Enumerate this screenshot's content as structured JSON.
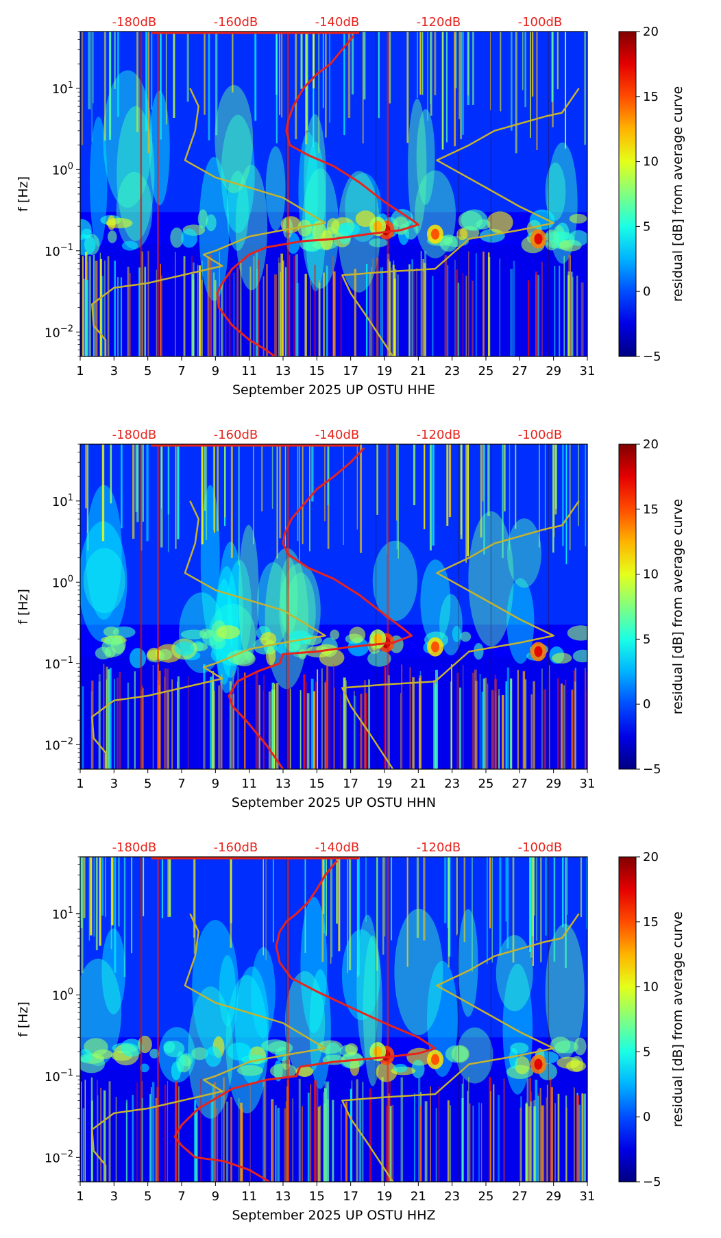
{
  "chart_data": [
    {
      "type": "heatmap",
      "title": "",
      "xlabel": "September 2025 UP OSTU  HHE",
      "ylabel": "f [Hz]",
      "x_ticks": [
        "1",
        "3",
        "5",
        "7",
        "9",
        "11",
        "13",
        "15",
        "17",
        "19",
        "21",
        "23",
        "25",
        "27",
        "29",
        "31"
      ],
      "xlim": [
        1,
        31
      ],
      "ylim": [
        0.005,
        50
      ],
      "y_ticks": [
        {
          "value": 0.01,
          "base": "10",
          "exp": "−2"
        },
        {
          "value": 0.1,
          "base": "10",
          "exp": "−1"
        },
        {
          "value": 1,
          "base": "10",
          "exp": "0"
        },
        {
          "value": 10,
          "base": "10",
          "exp": "1"
        }
      ],
      "db_labels": [
        {
          "day": 4.2,
          "text": "-180dB"
        },
        {
          "day": 10.2,
          "text": "-160dB"
        },
        {
          "day": 16.2,
          "text": "-140dB"
        },
        {
          "day": 22.2,
          "text": "-120dB"
        },
        {
          "day": 28.2,
          "text": "-100dB"
        }
      ],
      "colorbar": {
        "label": "residual [dB] from average curve",
        "min": -5,
        "max": 20,
        "ticks": [
          "20",
          "15",
          "10",
          "5",
          "0",
          "−5"
        ]
      },
      "series": [
        {
          "name": "average PSD (red)",
          "color": "#e8231c",
          "points": [
            [
              17.2,
              45
            ],
            [
              16.5,
              30
            ],
            [
              15.8,
              20
            ],
            [
              15,
              15
            ],
            [
              14.2,
              10
            ],
            [
              13.6,
              6
            ],
            [
              13.3,
              4
            ],
            [
              13.2,
              3
            ],
            [
              13.4,
              2
            ],
            [
              14.5,
              1.5
            ],
            [
              16,
              1.1
            ],
            [
              17.5,
              0.7
            ],
            [
              19,
              0.4
            ],
            [
              20.5,
              0.25
            ],
            [
              21,
              0.21
            ],
            [
              20,
              0.18
            ],
            [
              18,
              0.16
            ],
            [
              16,
              0.14
            ],
            [
              14,
              0.13
            ],
            [
              12,
              0.11
            ],
            [
              11,
              0.09
            ],
            [
              10,
              0.06
            ],
            [
              9.4,
              0.04
            ],
            [
              9.1,
              0.03
            ],
            [
              9.2,
              0.02
            ],
            [
              10,
              0.012
            ],
            [
              11,
              0.008
            ],
            [
              12,
              0.006
            ],
            [
              12.5,
              0.005
            ]
          ]
        },
        {
          "name": "noise model (yellow)",
          "color": "#c7b32e",
          "points": [
            [
              30.5,
              10
            ],
            [
              29.5,
              5
            ],
            [
              28.5,
              4.5
            ],
            [
              25.5,
              3
            ],
            [
              24,
              2
            ],
            [
              22.1,
              1.3
            ],
            [
              25,
              0.6
            ],
            [
              27,
              0.35
            ],
            [
              29,
              0.22
            ],
            [
              27,
              0.18
            ],
            [
              24,
              0.14
            ],
            [
              22,
              0.06
            ],
            [
              19,
              0.055
            ],
            [
              16.5,
              0.05
            ],
            [
              17,
              0.03
            ],
            [
              18,
              0.015
            ],
            [
              19.5,
              0.005
            ]
          ]
        },
        {
          "name": "noise model left (yellow)",
          "color": "#c7b32e",
          "points": [
            [
              7.5,
              10
            ],
            [
              8,
              6
            ],
            [
              7.8,
              3
            ],
            [
              7.2,
              1.3
            ],
            [
              9,
              0.8
            ],
            [
              13,
              0.45
            ],
            [
              15.5,
              0.22
            ],
            [
              13,
              0.18
            ],
            [
              11,
              0.15
            ],
            [
              9,
              0.1
            ],
            [
              8.3,
              0.09
            ],
            [
              9.4,
              0.065
            ],
            [
              5,
              0.04
            ],
            [
              3,
              0.035
            ],
            [
              1.7,
              0.022
            ],
            [
              1.8,
              0.012
            ],
            [
              2.5,
              0.008
            ],
            [
              2.5,
              0.005
            ]
          ]
        }
      ]
    },
    {
      "type": "heatmap",
      "title": "",
      "xlabel": "September 2025 UP OSTU  HHN",
      "ylabel": "f [Hz]",
      "x_ticks": [
        "1",
        "3",
        "5",
        "7",
        "9",
        "11",
        "13",
        "15",
        "17",
        "19",
        "21",
        "23",
        "25",
        "27",
        "29",
        "31"
      ],
      "xlim": [
        1,
        31
      ],
      "ylim": [
        0.005,
        50
      ],
      "y_ticks": [
        {
          "value": 0.01,
          "base": "10",
          "exp": "−2"
        },
        {
          "value": 0.1,
          "base": "10",
          "exp": "−1"
        },
        {
          "value": 1,
          "base": "10",
          "exp": "0"
        },
        {
          "value": 10,
          "base": "10",
          "exp": "1"
        }
      ],
      "db_labels": [
        {
          "day": 4.2,
          "text": "-180dB"
        },
        {
          "day": 10.2,
          "text": "-160dB"
        },
        {
          "day": 16.2,
          "text": "-140dB"
        },
        {
          "day": 22.2,
          "text": "-120dB"
        },
        {
          "day": 28.2,
          "text": "-100dB"
        }
      ],
      "colorbar": {
        "label": "residual [dB] from average curve",
        "min": -5,
        "max": 20,
        "ticks": [
          "20",
          "15",
          "10",
          "5",
          "0",
          "−5"
        ]
      },
      "series": [
        {
          "name": "average PSD (red)",
          "color": "#e8231c",
          "points": [
            [
              17.8,
              45
            ],
            [
              17,
              30
            ],
            [
              16,
              20
            ],
            [
              15,
              14
            ],
            [
              14.2,
              9
            ],
            [
              13.5,
              6
            ],
            [
              13.1,
              4
            ],
            [
              13,
              3
            ],
            [
              13.3,
              2.2
            ],
            [
              14.5,
              1.5
            ],
            [
              16,
              1.1
            ],
            [
              17.5,
              0.7
            ],
            [
              19,
              0.4
            ],
            [
              20.3,
              0.25
            ],
            [
              20.6,
              0.22
            ],
            [
              19.5,
              0.18
            ],
            [
              17,
              0.16
            ],
            [
              15,
              0.14
            ],
            [
              13,
              0.13
            ],
            [
              12.8,
              0.1
            ],
            [
              11.5,
              0.08
            ],
            [
              10.3,
              0.06
            ],
            [
              9.8,
              0.04
            ],
            [
              10,
              0.03
            ],
            [
              10.8,
              0.02
            ],
            [
              12,
              0.01
            ],
            [
              13,
              0.005
            ]
          ]
        },
        {
          "name": "noise model (yellow)",
          "color": "#c7b32e",
          "points": [
            [
              30.5,
              10
            ],
            [
              29.5,
              5
            ],
            [
              28.5,
              4.5
            ],
            [
              25.5,
              3
            ],
            [
              24,
              2
            ],
            [
              22.1,
              1.3
            ],
            [
              25,
              0.6
            ],
            [
              27,
              0.35
            ],
            [
              29,
              0.22
            ],
            [
              27,
              0.18
            ],
            [
              24,
              0.14
            ],
            [
              22,
              0.06
            ],
            [
              19,
              0.055
            ],
            [
              16.5,
              0.05
            ],
            [
              17,
              0.03
            ],
            [
              18,
              0.015
            ],
            [
              19.5,
              0.005
            ]
          ]
        },
        {
          "name": "noise model left (yellow)",
          "color": "#c7b32e",
          "points": [
            [
              7.5,
              10
            ],
            [
              8,
              6
            ],
            [
              7.8,
              3
            ],
            [
              7.2,
              1.3
            ],
            [
              9,
              0.8
            ],
            [
              13,
              0.45
            ],
            [
              15.5,
              0.22
            ],
            [
              13,
              0.18
            ],
            [
              11,
              0.15
            ],
            [
              9,
              0.1
            ],
            [
              8.3,
              0.09
            ],
            [
              9.4,
              0.065
            ],
            [
              5,
              0.04
            ],
            [
              3,
              0.035
            ],
            [
              1.7,
              0.022
            ],
            [
              1.8,
              0.012
            ],
            [
              2.5,
              0.008
            ],
            [
              2.5,
              0.005
            ]
          ]
        }
      ]
    },
    {
      "type": "heatmap",
      "title": "",
      "xlabel": "September 2025 UP OSTU  HHZ",
      "ylabel": "f [Hz]",
      "x_ticks": [
        "1",
        "3",
        "5",
        "7",
        "9",
        "11",
        "13",
        "15",
        "17",
        "19",
        "21",
        "23",
        "25",
        "27",
        "29",
        "31"
      ],
      "xlim": [
        1,
        31
      ],
      "ylim": [
        0.005,
        50
      ],
      "y_ticks": [
        {
          "value": 0.01,
          "base": "10",
          "exp": "−2"
        },
        {
          "value": 0.1,
          "base": "10",
          "exp": "−1"
        },
        {
          "value": 1,
          "base": "10",
          "exp": "0"
        },
        {
          "value": 10,
          "base": "10",
          "exp": "1"
        }
      ],
      "db_labels": [
        {
          "day": 4.2,
          "text": "-180dB"
        },
        {
          "day": 10.2,
          "text": "-160dB"
        },
        {
          "day": 16.2,
          "text": "-140dB"
        },
        {
          "day": 22.2,
          "text": "-120dB"
        },
        {
          "day": 28.2,
          "text": "-100dB"
        }
      ],
      "colorbar": {
        "label": "residual [dB] from average curve",
        "min": -5,
        "max": 20,
        "ticks": [
          "20",
          "15",
          "10",
          "5",
          "0",
          "−5"
        ]
      },
      "series": [
        {
          "name": "average PSD (red)",
          "color": "#e8231c",
          "points": [
            [
              16.2,
              45
            ],
            [
              15.5,
              30
            ],
            [
              15,
              20
            ],
            [
              14.5,
              14
            ],
            [
              13.8,
              10
            ],
            [
              13.2,
              8
            ],
            [
              12.8,
              6
            ],
            [
              12.6,
              4
            ],
            [
              12.8,
              2.5
            ],
            [
              13.5,
              1.6
            ],
            [
              15,
              1.1
            ],
            [
              17,
              0.7
            ],
            [
              19,
              0.45
            ],
            [
              21,
              0.3
            ],
            [
              22,
              0.22
            ],
            [
              21,
              0.19
            ],
            [
              19,
              0.17
            ],
            [
              16,
              0.15
            ],
            [
              14,
              0.13
            ],
            [
              13.8,
              0.1
            ],
            [
              12,
              0.09
            ],
            [
              10,
              0.07
            ],
            [
              8,
              0.04
            ],
            [
              7,
              0.025
            ],
            [
              6.6,
              0.018
            ],
            [
              7,
              0.014
            ],
            [
              7.8,
              0.01
            ],
            [
              9.5,
              0.009
            ],
            [
              11,
              0.007
            ],
            [
              12.2,
              0.005
            ]
          ]
        },
        {
          "name": "noise model (yellow)",
          "color": "#c7b32e",
          "points": [
            [
              30.5,
              10
            ],
            [
              29.5,
              5
            ],
            [
              28.5,
              4.5
            ],
            [
              25.5,
              3
            ],
            [
              24,
              2
            ],
            [
              22.1,
              1.3
            ],
            [
              25,
              0.6
            ],
            [
              27,
              0.35
            ],
            [
              29,
              0.22
            ],
            [
              27,
              0.18
            ],
            [
              24,
              0.14
            ],
            [
              22,
              0.06
            ],
            [
              19,
              0.055
            ],
            [
              16.5,
              0.05
            ],
            [
              17,
              0.03
            ],
            [
              18,
              0.015
            ],
            [
              19.5,
              0.005
            ]
          ]
        },
        {
          "name": "noise model left (yellow)",
          "color": "#c7b32e",
          "points": [
            [
              7.5,
              10
            ],
            [
              8,
              6
            ],
            [
              7.8,
              3
            ],
            [
              7.2,
              1.3
            ],
            [
              9,
              0.8
            ],
            [
              13,
              0.45
            ],
            [
              15.5,
              0.22
            ],
            [
              13,
              0.18
            ],
            [
              11,
              0.15
            ],
            [
              9,
              0.1
            ],
            [
              8.3,
              0.09
            ],
            [
              9.4,
              0.065
            ],
            [
              5,
              0.04
            ],
            [
              3,
              0.035
            ],
            [
              1.7,
              0.022
            ],
            [
              1.8,
              0.012
            ],
            [
              2.5,
              0.008
            ],
            [
              2.5,
              0.005
            ]
          ]
        }
      ]
    }
  ]
}
